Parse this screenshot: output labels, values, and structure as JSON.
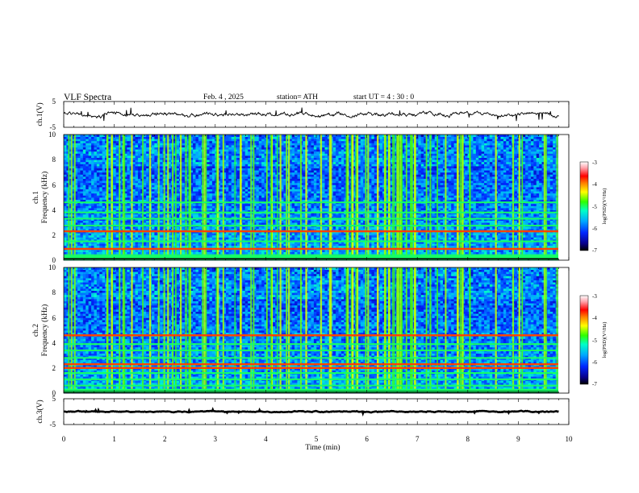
{
  "header": {
    "title": "VLF Spectra",
    "date": "Feb. 4 , 2025",
    "station": "station= ATH",
    "start": "start UT = 4 : 30 : 0"
  },
  "chart_data": {
    "type": "heatmap",
    "title": "VLF Spectra",
    "xlabel": "Time (min)",
    "xlim": [
      0,
      10
    ],
    "x_ticks": [
      "0",
      "1",
      "2",
      "3",
      "4",
      "5",
      "6",
      "7",
      "8",
      "9",
      "10"
    ],
    "panels": [
      {
        "name": "ch.1(V)",
        "kind": "line",
        "ylabel": "ch.1(V)",
        "ylim": [
          -5,
          5
        ],
        "y_ticks": [
          "5",
          "-5"
        ],
        "baseline": 0,
        "trace_range": [
          -0.5,
          0.6
        ]
      },
      {
        "name": "ch.1 Frequency (kHz)",
        "kind": "heatmap",
        "ylabel_line1": "ch.1",
        "ylabel_line2": "Frequency (kHz)",
        "ylim": [
          0,
          10
        ],
        "y_ticks": [
          "0",
          "2",
          "4",
          "6",
          "8",
          "10"
        ],
        "colorbar": {
          "label": "log(PSD)(V²/Hz)",
          "range": [
            -7,
            -3
          ],
          "ticks": [
            "-3",
            "-4",
            "-5",
            "-6",
            "-7"
          ]
        },
        "bands_khz": [
          0.4,
          0.9,
          1.5,
          2.3,
          2.75,
          3.3,
          3.8,
          4.6
        ],
        "intense_bands_khz": [
          0.9,
          2.3
        ]
      },
      {
        "name": "ch.2 Frequency (kHz)",
        "kind": "heatmap",
        "ylabel_line1": "ch.2",
        "ylabel_line2": "Frequency (kHz)",
        "ylim": [
          0,
          10
        ],
        "y_ticks": [
          "0",
          "2",
          "4",
          "6",
          "8",
          "10"
        ],
        "colorbar": {
          "label": "log(PSD)(V²/Hz)",
          "range": [
            -7,
            -3
          ],
          "ticks": [
            "-3",
            "-4",
            "-5",
            "-6",
            "-7"
          ]
        },
        "bands_khz": [
          0.6,
          1.1,
          1.6,
          2.0,
          2.3,
          2.8,
          3.4,
          3.9,
          4.6
        ],
        "intense_bands_khz": [
          2.0,
          2.3,
          4.6
        ]
      },
      {
        "name": "ch.3(V)",
        "kind": "line",
        "ylabel": "ch.3(V)",
        "ylim": [
          -5,
          5
        ],
        "y_ticks": [
          "5",
          "-5"
        ],
        "baseline": 0,
        "trace_range": [
          -0.3,
          0.3
        ]
      }
    ],
    "colors": {
      "colormap": [
        "#000000",
        "#08008c",
        "#0026ff",
        "#00a8ff",
        "#00ffc8",
        "#2dff00",
        "#ffff00",
        "#ff8000",
        "#ff0000",
        "#ff9fa8",
        "#ffffff"
      ],
      "trace": "#000000"
    }
  }
}
